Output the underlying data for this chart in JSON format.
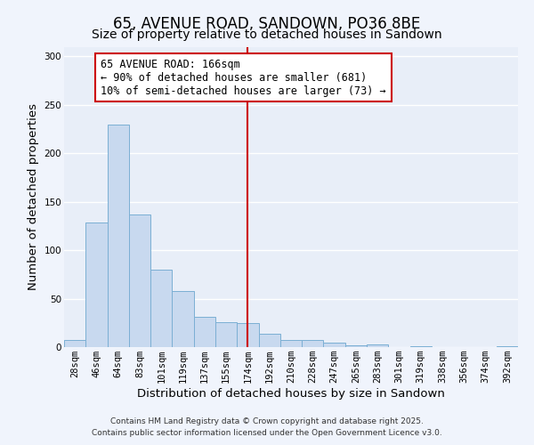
{
  "title": "65, AVENUE ROAD, SANDOWN, PO36 8BE",
  "subtitle": "Size of property relative to detached houses in Sandown",
  "xlabel": "Distribution of detached houses by size in Sandown",
  "ylabel": "Number of detached properties",
  "bar_labels": [
    "28sqm",
    "46sqm",
    "64sqm",
    "83sqm",
    "101sqm",
    "119sqm",
    "137sqm",
    "155sqm",
    "174sqm",
    "192sqm",
    "210sqm",
    "228sqm",
    "247sqm",
    "265sqm",
    "283sqm",
    "301sqm",
    "319sqm",
    "338sqm",
    "356sqm",
    "374sqm",
    "392sqm"
  ],
  "bar_values": [
    7,
    129,
    230,
    137,
    80,
    58,
    31,
    26,
    25,
    14,
    7,
    7,
    5,
    2,
    3,
    0,
    1,
    0,
    0,
    0,
    1
  ],
  "bar_color": "#c8d9ef",
  "bar_edge_color": "#7bafd4",
  "plot_bg_color": "#e8eef8",
  "fig_bg_color": "#f0f4fc",
  "grid_color": "#ffffff",
  "vline_x_idx": 8,
  "vline_color": "#cc0000",
  "annotation_title": "65 AVENUE ROAD: 166sqm",
  "annotation_line1": "← 90% of detached houses are smaller (681)",
  "annotation_line2": "10% of semi-detached houses are larger (73) →",
  "annotation_box_facecolor": "#ffffff",
  "annotation_box_edgecolor": "#cc0000",
  "ylim": [
    0,
    310
  ],
  "yticks": [
    0,
    50,
    100,
    150,
    200,
    250,
    300
  ],
  "footer1": "Contains HM Land Registry data © Crown copyright and database right 2025.",
  "footer2": "Contains public sector information licensed under the Open Government Licence v3.0.",
  "title_fontsize": 12,
  "subtitle_fontsize": 10,
  "axis_label_fontsize": 9.5,
  "tick_fontsize": 7.5,
  "annotation_fontsize": 8.5,
  "footer_fontsize": 6.5
}
